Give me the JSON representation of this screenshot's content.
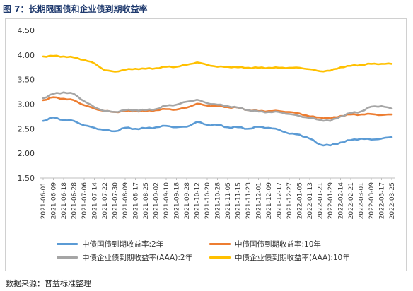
{
  "figure_title": "图 7：长期限国债和企业债到期收益率",
  "source_text": "数据来源：普益标准整理",
  "chart_data": {
    "type": "line",
    "ylim": [
      1.5,
      4.5
    ],
    "y_ticks": [
      "1.50",
      "2.00",
      "2.50",
      "3.00",
      "3.50",
      "4.00",
      "4.50"
    ],
    "grid": false,
    "legend_position": "bottom",
    "x_tick_labels": [
      "2021-06-01",
      "2021-06-09",
      "2021-06-18",
      "2021-06-28",
      "2021-07-06",
      "2021-07-14",
      "2021-07-22",
      "2021-07-30",
      "2021-08-09",
      "2021-08-17",
      "2021-08-25",
      "2021-09-02",
      "2021-09-10",
      "2021-09-18",
      "2021-09-28",
      "2021-10-12",
      "2021-10-20",
      "2021-10-28",
      "2021-11-05",
      "2021-11-15",
      "2021-11-23",
      "2021-12-01",
      "2021-12-09",
      "2021-12-17",
      "2021-12-27",
      "2022-01-05",
      "2022-01-13",
      "2022-01-21",
      "2022-01-29",
      "2022-02-14",
      "2022-02-21",
      "2022-03-01",
      "2022-03-09",
      "2022-03-17",
      "2022-03-25"
    ],
    "series": [
      {
        "name": "中债国债到期收益率:2年",
        "color": "#5b9bd5",
        "values": [
          2.66,
          2.73,
          2.68,
          2.66,
          2.57,
          2.52,
          2.47,
          2.45,
          2.52,
          2.5,
          2.51,
          2.53,
          2.56,
          2.53,
          2.54,
          2.64,
          2.58,
          2.58,
          2.53,
          2.53,
          2.5,
          2.54,
          2.52,
          2.48,
          2.4,
          2.38,
          2.3,
          2.18,
          2.16,
          2.22,
          2.27,
          2.3,
          2.28,
          2.3,
          2.33
        ]
      },
      {
        "name": "中债国债到期收益率:10年",
        "color": "#ed7d31",
        "values": [
          3.08,
          3.14,
          3.11,
          3.08,
          2.98,
          2.91,
          2.86,
          2.84,
          2.86,
          2.86,
          2.86,
          2.88,
          2.9,
          2.89,
          2.93,
          3.01,
          2.97,
          2.96,
          2.94,
          2.93,
          2.88,
          2.86,
          2.86,
          2.86,
          2.84,
          2.81,
          2.75,
          2.73,
          2.71,
          2.76,
          2.79,
          2.79,
          2.8,
          2.78,
          2.79
        ]
      },
      {
        "name": "中债企业债到期收益率(AAA):2年",
        "color": "#a5a5a5",
        "values": [
          3.12,
          3.21,
          3.24,
          3.21,
          3.06,
          2.94,
          2.86,
          2.84,
          2.88,
          2.88,
          2.88,
          2.9,
          2.97,
          2.99,
          3.05,
          3.09,
          3.02,
          2.99,
          2.96,
          2.93,
          2.88,
          2.85,
          2.84,
          2.84,
          2.8,
          2.76,
          2.72,
          2.68,
          2.66,
          2.75,
          2.82,
          2.85,
          2.95,
          2.96,
          2.91
        ]
      },
      {
        "name": "中债企业债到期收益率(AAA):10年",
        "color": "#ffc000",
        "values": [
          3.97,
          3.98,
          3.97,
          3.95,
          3.9,
          3.83,
          3.69,
          3.66,
          3.7,
          3.72,
          3.72,
          3.73,
          3.76,
          3.76,
          3.8,
          3.85,
          3.8,
          3.76,
          3.76,
          3.75,
          3.74,
          3.74,
          3.74,
          3.74,
          3.74,
          3.74,
          3.71,
          3.67,
          3.68,
          3.75,
          3.78,
          3.8,
          3.82,
          3.82,
          3.82
        ]
      }
    ]
  }
}
